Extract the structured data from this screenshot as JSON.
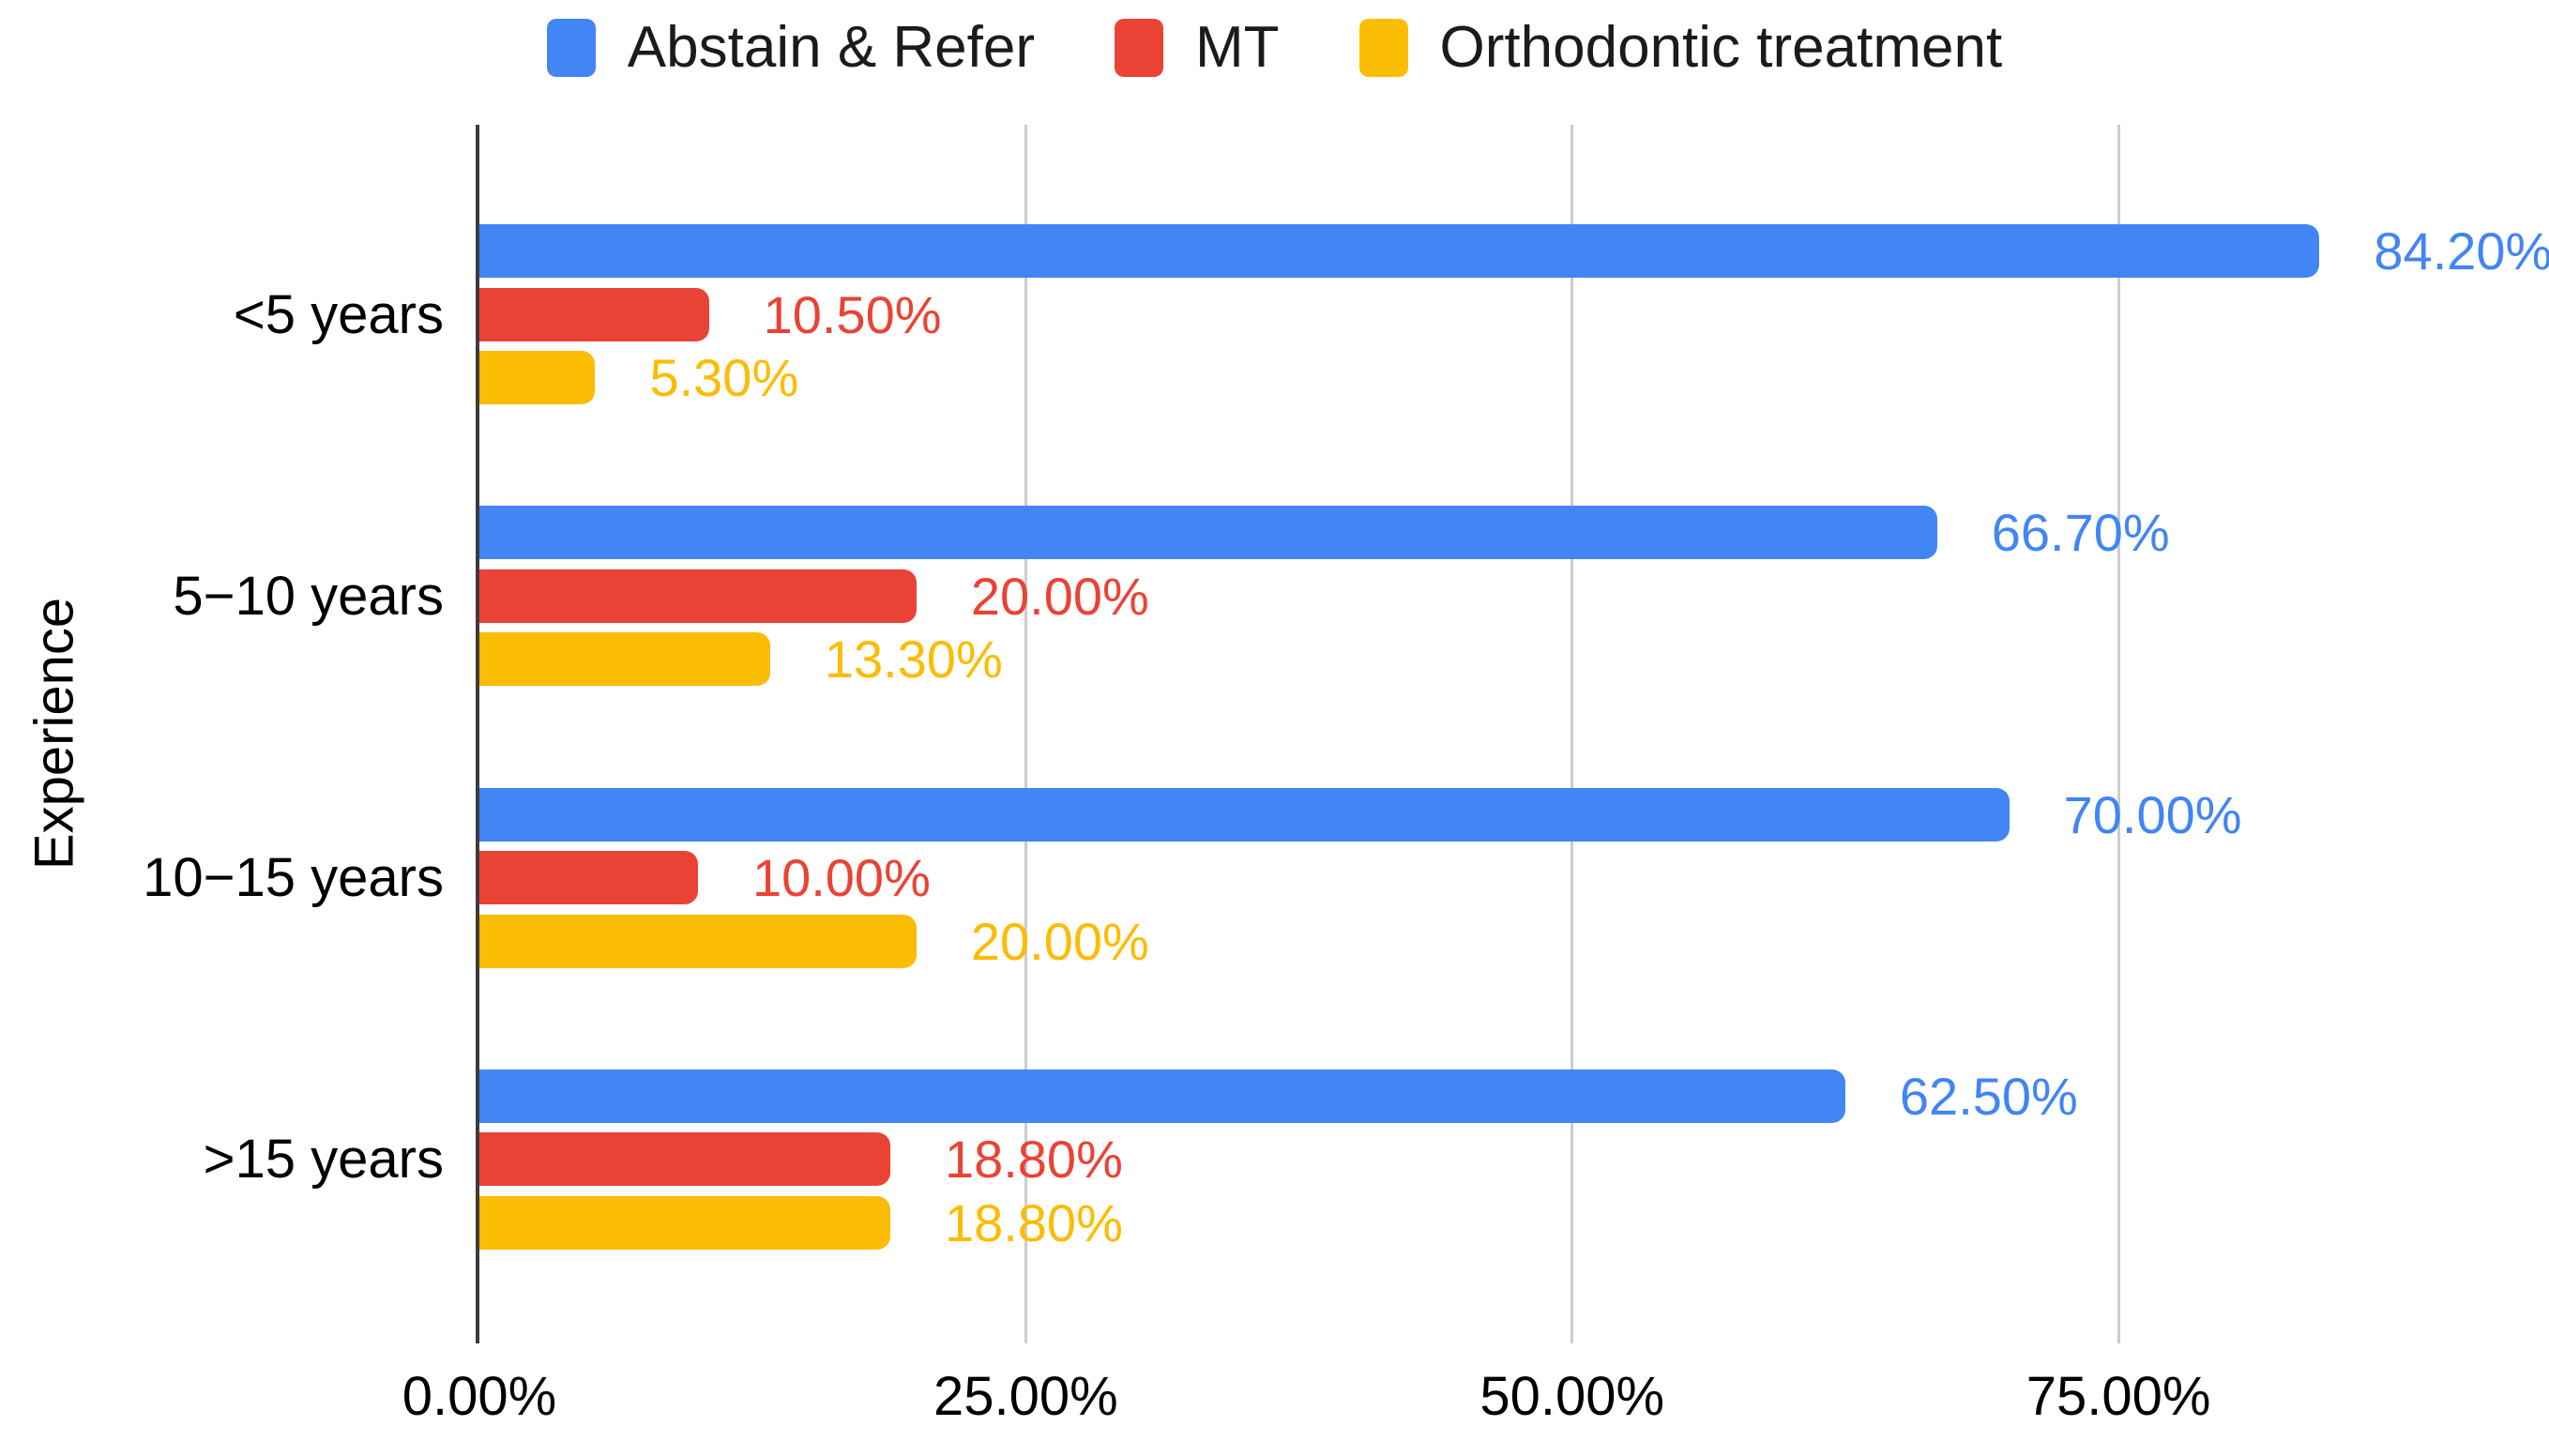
{
  "chart_data": {
    "type": "bar",
    "orientation": "horizontal",
    "ylabel": "Experience",
    "xlabel": "",
    "categories": [
      "<5 years",
      "5−10 years",
      "10−15 years",
      ">15 years"
    ],
    "series": [
      {
        "name": "Abstain & Refer",
        "color": "#4285F4",
        "values": [
          84.2,
          66.7,
          70.0,
          62.5
        ],
        "value_labels": [
          "84.20%",
          "66.70%",
          "70.00%",
          "62.50%"
        ]
      },
      {
        "name": "MT",
        "color": "#EA4335",
        "values": [
          10.5,
          20.0,
          10.0,
          18.8
        ],
        "value_labels": [
          "10.50%",
          "20.00%",
          "10.00%",
          "18.80%"
        ]
      },
      {
        "name": "Orthodontic treatment",
        "color": "#FBBC04",
        "values": [
          5.3,
          13.3,
          20.0,
          18.8
        ],
        "value_labels": [
          "5.30%",
          "13.30%",
          "20.00%",
          "18.80%"
        ]
      }
    ],
    "x_axis": {
      "ticks": [
        {
          "value": 0,
          "label": "0.00%"
        },
        {
          "value": 25,
          "label": "25.00%"
        },
        {
          "value": 50,
          "label": "50.00%"
        },
        {
          "value": 75,
          "label": "75.00%"
        }
      ],
      "xlim": [
        0,
        94.7
      ]
    },
    "grid": true,
    "legend_position": "top",
    "axis_color": "#3c3c3c",
    "gridline_color": "#cccccc",
    "text_color": "#000000"
  }
}
